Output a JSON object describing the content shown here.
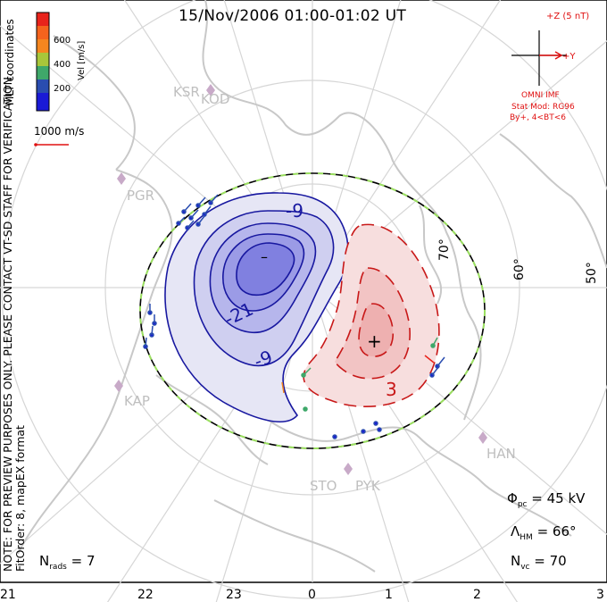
{
  "title": "15/Nov/2006 01:00-01:02 UT",
  "side_note": {
    "line1": "NOTE: FOR PREVIEW PURPOSES ONLY. PLEASE CONTACT VT-SD STAFF FOR VERIFICATION.",
    "line2": "FitOrder: 8, mapEX format"
  },
  "coordinates_label": "MLT coordinates",
  "velocity_scale": {
    "label": "Vel [m/s]",
    "ticks": [
      "600",
      "400",
      "200"
    ],
    "colors": [
      "#e8231b",
      "#f5861f",
      "#a8c63a",
      "#3fa86a",
      "#2f7a8c",
      "#2a4db0",
      "#1a1ad6"
    ]
  },
  "reference_vector": {
    "label": "1000 m/s",
    "color": "#e01010"
  },
  "imf": {
    "scale_label": "+Z (5 nT)",
    "y_label": "+Y",
    "source": "OMNI IMF",
    "model": "Stat Mod: RG96",
    "condition": "By+, 4<BT<6",
    "clock_angle_deg": 90,
    "magnitude_fraction": 1.0,
    "color": "#e01010"
  },
  "latitude_labels": [
    "70°",
    "60°",
    "50°"
  ],
  "stations": [
    "KSR",
    "KOD",
    "PGR",
    "KAP",
    "STO",
    "PYK",
    "HAN"
  ],
  "contours": {
    "negative_labels": [
      "-9",
      "-21",
      "-9"
    ],
    "negative_extremum": "–",
    "positive_labels": [
      "3"
    ],
    "positive_extremum": "+",
    "negative_color": "#1818a0",
    "positive_color": "#c81818"
  },
  "stats": {
    "phi_pc_symbol": "Φ",
    "phi_pc_sub": "pc",
    "phi_pc_value": "= 45 kV",
    "lambda_hm_symbol": "Λ",
    "lambda_hm_sub": "HM",
    "lambda_hm_value": "= 66°",
    "n_vc_symbol": "N",
    "n_vc_sub": "vc",
    "n_vc_value": "= 70",
    "n_rads_symbol": "N",
    "n_rads_sub": "rads",
    "n_rads_value": "= 7"
  },
  "mlt_ticks": [
    "21",
    "22",
    "23",
    "0",
    "1",
    "2",
    "3"
  ]
}
